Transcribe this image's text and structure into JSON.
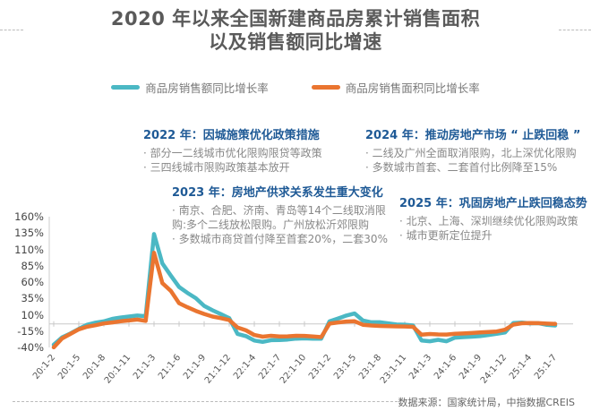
{
  "title": {
    "line1": "2020 年以来全国新建商品房累计销售面积",
    "line2": "以及销售额同比增速"
  },
  "legend": [
    {
      "label": "商品房销售额同比增长率",
      "color": "#4bb8c4"
    },
    {
      "label": "商品房销售面积同比增长率",
      "color": "#ea7530"
    }
  ],
  "annotations": [
    {
      "id": "2022",
      "head": "2022 年：因城施策优化政策措施",
      "bullets": [
        "· 部分一二线城市优化限购限贷等政策",
        "· 三四线城市限购政策基本放开"
      ]
    },
    {
      "id": "2024",
      "head": "2024 年：推动房地产市场 “ 止跌回稳 ”",
      "bullets": [
        "· 二线及广州全面取消限购，北上深优化限购",
        "· 多数城市首套、二套首付比例降至15%"
      ]
    },
    {
      "id": "2023",
      "head": "2023 年：房地产供求关系发生重大变化",
      "bullets": [
        "· 南京、合肥、济南、青岛等14个二线取消限",
        "购:多个二线放松限购。广州放松沂郊限购",
        "· 多数城市商贷首付降至首套20%，二套30%"
      ]
    },
    {
      "id": "2025",
      "head": "2025 年：巩固房地产止跌回稳态势",
      "bullets": [
        "· 北京、上海、深圳继续优化限购政策",
        "· 城市更新定位提升"
      ]
    }
  ],
  "source": "数据来源：国家统计局，中指数据CREIS",
  "chart_data": {
    "type": "line",
    "title": "2020 年以来全国新建商品房累计销售面积以及销售额同比增速",
    "xlabel": "",
    "ylabel": "",
    "ylim": [
      -40,
      160
    ],
    "yticks": [
      "160%",
      "135%",
      "110%",
      "85%",
      "60%",
      "35%",
      "10%",
      "-15%",
      "-40%"
    ],
    "xticks": [
      "20:1-2",
      "20:1-5",
      "20:1-8",
      "20:1-11",
      "21:1-3",
      "21:1-6",
      "21:1-9",
      "21:1-12",
      "22:1-4",
      "22:1-7",
      "22:1-10",
      "23:1-2",
      "23:1-5",
      "23:1-8",
      "23:1-11",
      "24:1-3",
      "24:1-6",
      "24:1-9",
      "24:1-12",
      "25:1-4",
      "25:1-7"
    ],
    "grid": false,
    "legend_position": "top",
    "x": [
      "20:1-2",
      "20:1-3",
      "20:1-4",
      "20:1-5",
      "20:1-6",
      "20:1-7",
      "20:1-8",
      "20:1-9",
      "20:1-10",
      "20:1-11",
      "20:1-12",
      "21:1-2",
      "21:1-3",
      "21:1-4",
      "21:1-5",
      "21:1-6",
      "21:1-7",
      "21:1-8",
      "21:1-9",
      "21:1-10",
      "21:1-11",
      "21:1-12",
      "22:1-2",
      "22:1-3",
      "22:1-4",
      "22:1-5",
      "22:1-6",
      "22:1-7",
      "22:1-8",
      "22:1-9",
      "22:1-10",
      "22:1-11",
      "22:1-12",
      "23:1-2",
      "23:1-3",
      "23:1-4",
      "23:1-5",
      "23:1-6",
      "23:1-7",
      "23:1-8",
      "23:1-9",
      "23:1-10",
      "23:1-11",
      "23:1-12",
      "24:1-2",
      "24:1-3",
      "24:1-4",
      "24:1-5",
      "24:1-6",
      "24:1-7",
      "24:1-8",
      "24:1-9",
      "24:1-10",
      "24:1-11",
      "24:1-12",
      "25:1-2",
      "25:1-3",
      "25:1-4",
      "25:1-5",
      "25:1-6",
      "25:1-7"
    ],
    "series": [
      {
        "name": "商品房销售额同比增长率",
        "color": "#4bb8c4",
        "values": [
          -35.9,
          -24.7,
          -18.6,
          -11.6,
          -5.4,
          -2.1,
          -0.2,
          3.7,
          5.8,
          7.2,
          8.7,
          7.8,
          133.4,
          88.5,
          70.0,
          52.4,
          43.4,
          35.3,
          23.6,
          16.9,
          11.0,
          4.8,
          -19.3,
          -22.7,
          -29.5,
          -31.5,
          -28.9,
          -28.8,
          -27.9,
          -26.6,
          -26.1,
          -26.6,
          -26.7,
          -0.1,
          4.1,
          8.8,
          11.9,
          1.1,
          -1.5,
          -1.5,
          -3.2,
          -4.9,
          -5.2,
          -6.5,
          -29.3,
          -30.5,
          -28.3,
          -30.5,
          -25.0,
          -24.3,
          -23.6,
          -22.7,
          -20.9,
          -19.2,
          -17.1,
          -2.6,
          -2.1,
          -3.2,
          -2.9,
          -5.5,
          -6.5
        ]
      },
      {
        "name": "商品房销售面积同比增长率",
        "color": "#ea7530",
        "values": [
          -39.9,
          -26.3,
          -19.3,
          -12.3,
          -8.4,
          -6.0,
          -3.3,
          -1.8,
          0.0,
          1.3,
          2.6,
          0.5,
          104.9,
          58.4,
          46.6,
          27.7,
          21.5,
          15.9,
          11.3,
          7.3,
          4.8,
          1.9,
          -9.6,
          -13.8,
          -20.9,
          -23.6,
          -22.2,
          -23.1,
          -23.0,
          -22.2,
          -22.3,
          -23.3,
          -24.3,
          -3.6,
          -1.8,
          -0.4,
          0.0,
          -5.3,
          -6.5,
          -7.1,
          -7.5,
          -7.8,
          -8.0,
          -8.5,
          -20.5,
          -19.4,
          -20.2,
          -20.3,
          -19.0,
          -18.6,
          -18.0,
          -17.1,
          -16.3,
          -15.6,
          -12.9,
          -5.1,
          -3.0,
          -2.8,
          -2.9,
          -3.5,
          -4.0
        ]
      }
    ]
  }
}
